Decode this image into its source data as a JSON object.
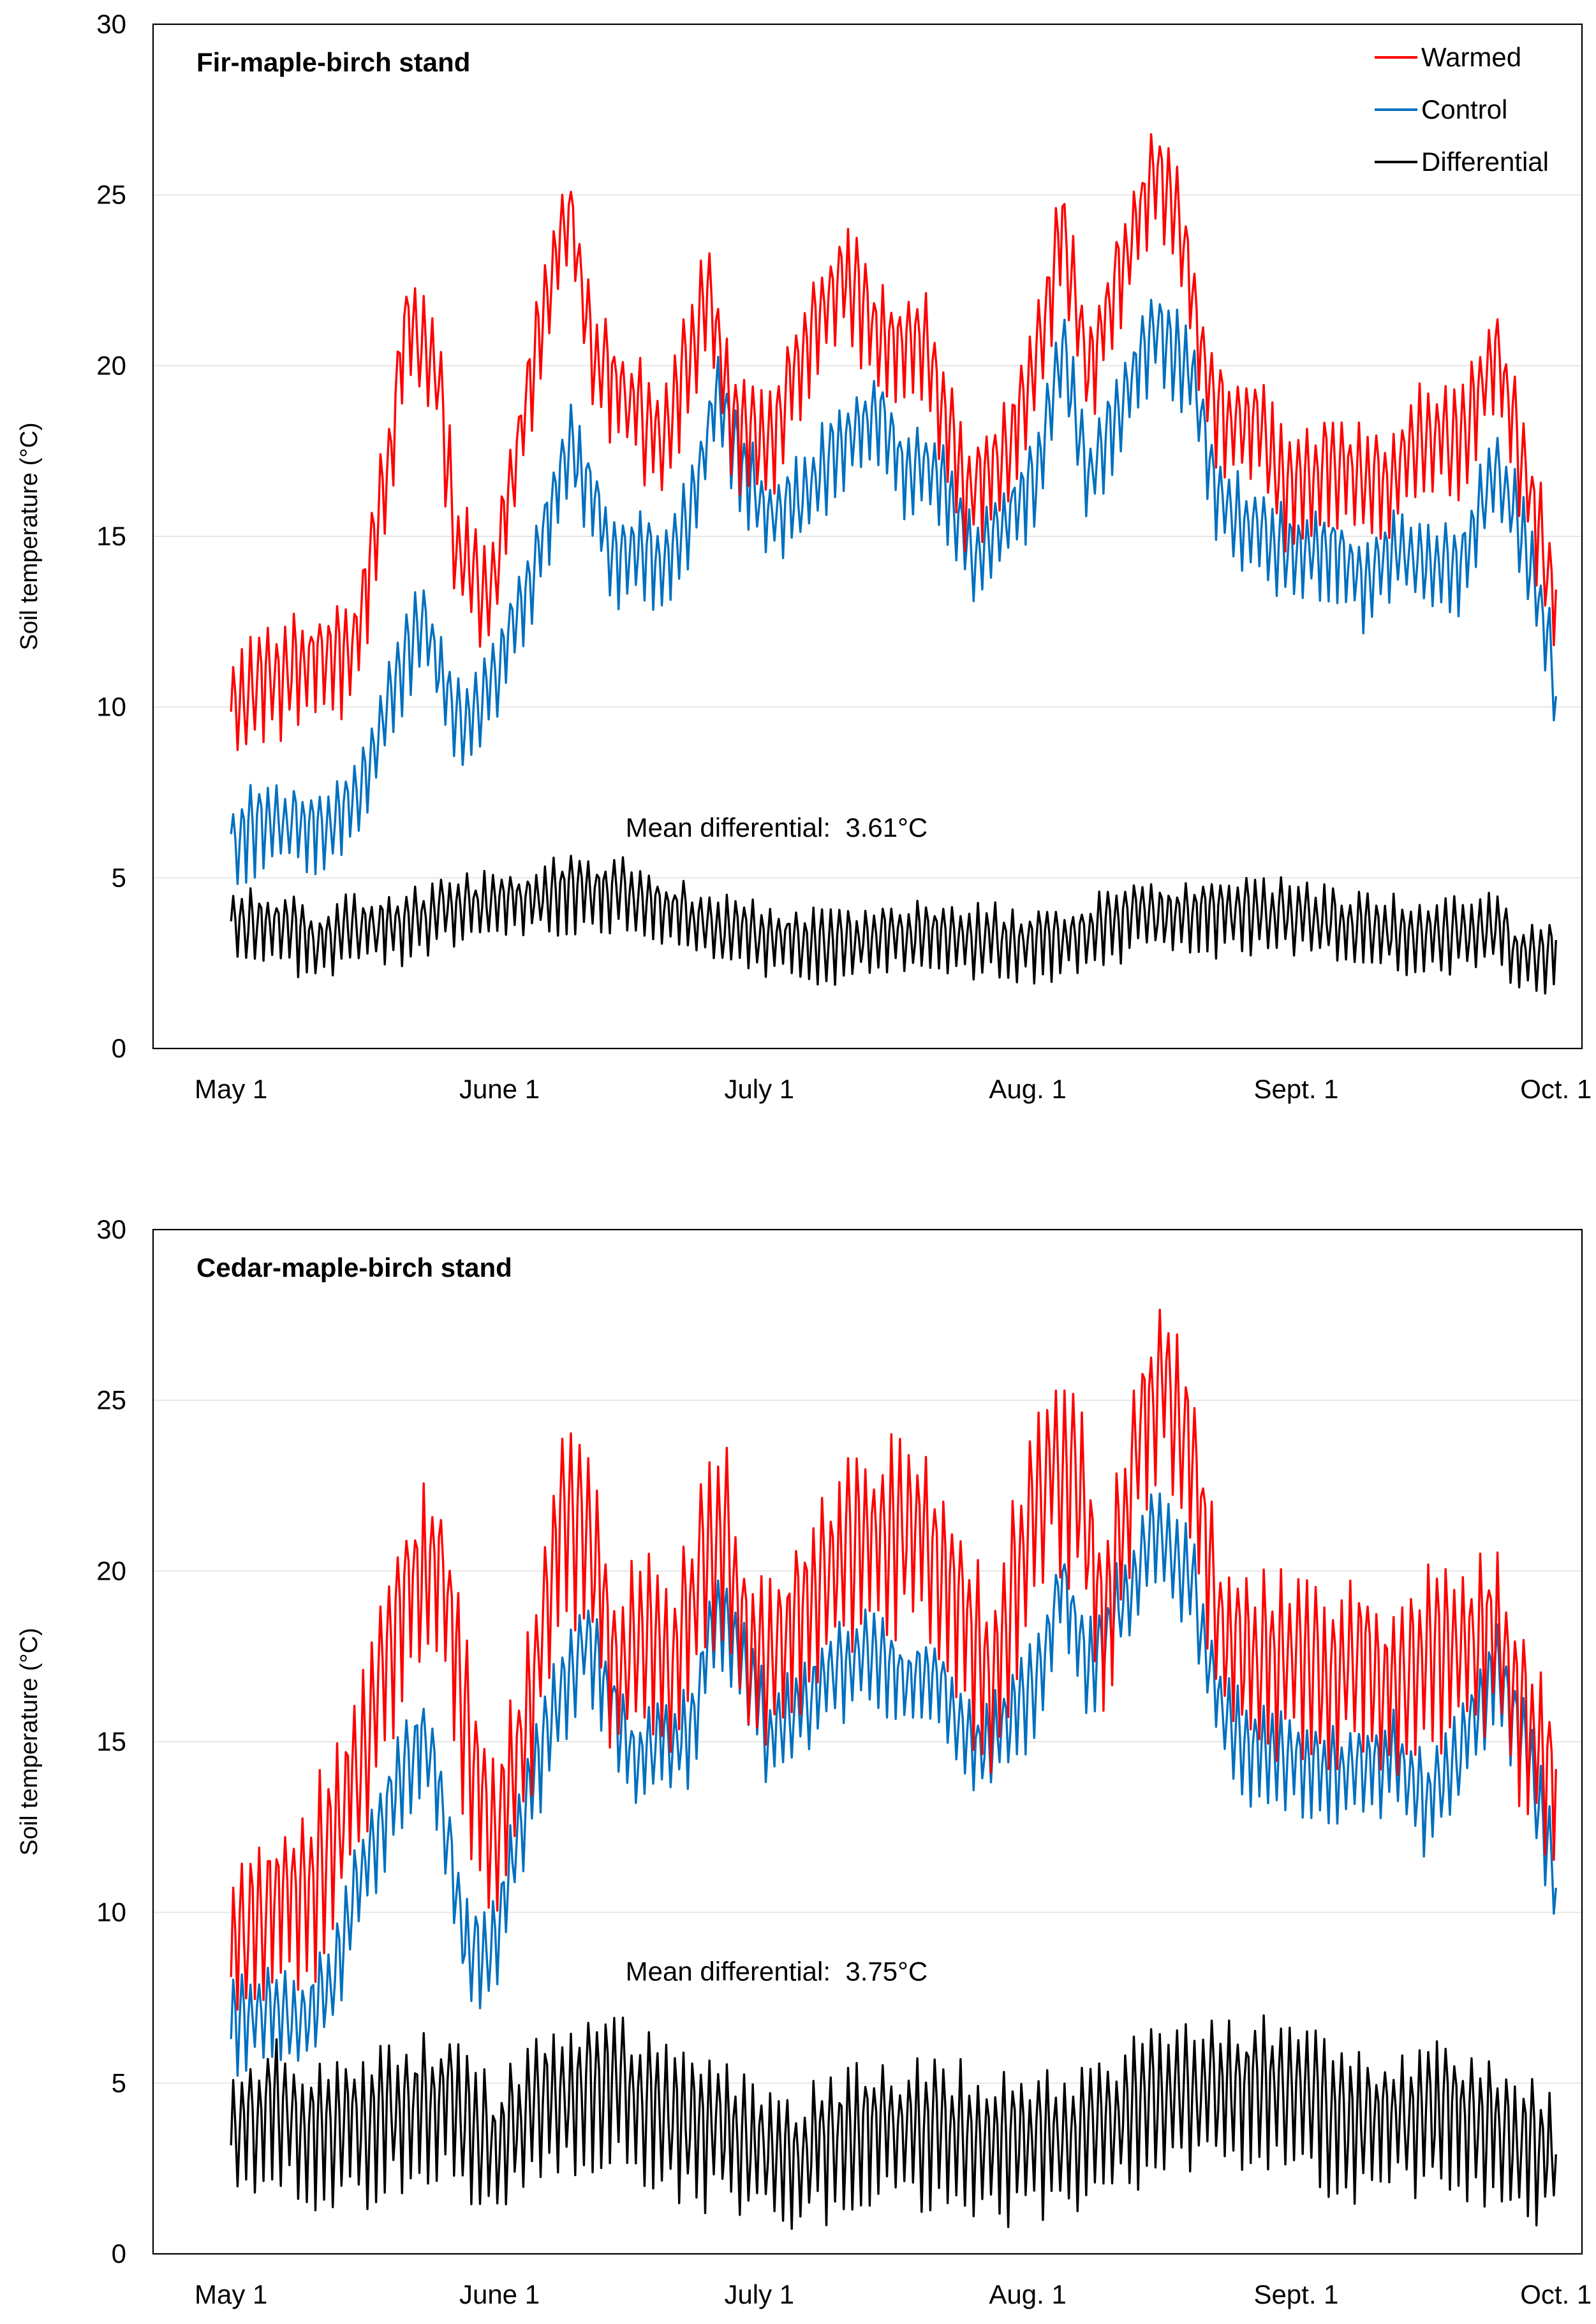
{
  "colors": {
    "warmed": "#ff0000",
    "control": "#0070c0",
    "differential": "#000000",
    "grid": "#e6e6e6",
    "frame": "#000000"
  },
  "chart_data": [
    {
      "type": "line",
      "title": "Fir-maple-birch stand",
      "ylabel": "Soil temperature (°C)",
      "xlabel": "",
      "ylim": [
        0,
        30
      ],
      "yticks": [
        "0",
        "5",
        "10",
        "15",
        "20",
        "25",
        "30"
      ],
      "xticks": [
        "May 1",
        "June 1",
        "July 1",
        "Aug. 1",
        "Sept. 1",
        "Oct. 1"
      ],
      "x_unit": "day of season (0 = May 1)",
      "xlim": [
        -9,
        156
      ],
      "grid": true,
      "legend_position": "top-right",
      "annotation": "Mean differential:  3.61°C",
      "series": [
        {
          "name": "Warmed",
          "color": "#ff0000",
          "amp": 1.4,
          "x": [
            0,
            3,
            8,
            14,
            18,
            20,
            24,
            26,
            30,
            35,
            39,
            42,
            47,
            50,
            55,
            58,
            62,
            67,
            71,
            75,
            80,
            85,
            90,
            93,
            96,
            99,
            103,
            107,
            110,
            113,
            116,
            119,
            122,
            127,
            130,
            134,
            138,
            142,
            146,
            150,
            152,
            153
          ],
          "values": [
            9.5,
            10.5,
            11,
            11.5,
            16.5,
            21,
            19.5,
            14.5,
            13,
            20,
            24.5,
            20,
            18.5,
            17.5,
            22,
            18,
            17.5,
            21,
            22.5,
            20.5,
            20.5,
            16,
            17.5,
            20,
            24,
            19.5,
            23,
            25.5,
            23.5,
            19,
            18,
            18,
            16,
            17,
            16.5,
            16.5,
            18,
            17.5,
            20.5,
            16,
            14,
            13.5
          ]
        },
        {
          "name": "Control",
          "color": "#0070c0",
          "amp": 1.1,
          "x": [
            0,
            4,
            8,
            12,
            15,
            19,
            22,
            24,
            27,
            31,
            35,
            39,
            42,
            44,
            47,
            50,
            53,
            56,
            59,
            62,
            66,
            70,
            75,
            78,
            81,
            86,
            90,
            93,
            96,
            99,
            103,
            107,
            111,
            114,
            118,
            122,
            127,
            131,
            134,
            138,
            142,
            146,
            149,
            152,
            153
          ],
          "values": [
            6,
            6.5,
            6.5,
            6.5,
            7.5,
            10.5,
            12.5,
            11,
            9,
            11,
            14,
            17.5,
            16,
            14,
            14.5,
            14,
            15.5,
            19,
            17,
            15.5,
            16,
            17.5,
            18.5,
            16.5,
            17,
            14,
            15.5,
            16.5,
            20.5,
            16.5,
            19,
            21,
            19.5,
            16,
            15,
            14.5,
            14.5,
            13.5,
            14.5,
            14,
            14,
            17,
            15,
            12,
            10.5
          ]
        },
        {
          "name": "Differential",
          "color": "#000000",
          "amp": 0.9,
          "x": [
            0,
            5,
            10,
            15,
            20,
            25,
            30,
            35,
            40,
            45,
            50,
            55,
            60,
            65,
            70,
            75,
            80,
            85,
            90,
            95,
            100,
            105,
            110,
            115,
            120,
            125,
            130,
            135,
            140,
            145,
            147,
            148,
            150,
            153
          ],
          "values": [
            3.5,
            3.5,
            3,
            3.5,
            3.5,
            4,
            4,
            4.3,
            4.5,
            4.5,
            4,
            3.5,
            3.2,
            3,
            3,
            3.2,
            3.3,
            3.2,
            3,
            3.1,
            3.4,
            3.8,
            3.8,
            3.8,
            3.9,
            3.7,
            3.5,
            3.3,
            3.2,
            3.4,
            3.5,
            2.6,
            2.6,
            2.8
          ]
        }
      ]
    },
    {
      "type": "line",
      "title": "Cedar-maple-birch stand",
      "ylabel": "Soil temperature (°C)",
      "xlabel": "",
      "ylim": [
        0,
        30
      ],
      "yticks": [
        "0",
        "5",
        "10",
        "15",
        "20",
        "25",
        "30"
      ],
      "xticks": [
        "May 1",
        "June 1",
        "July 1",
        "Aug. 1",
        "Sept. 1",
        "Oct. 1"
      ],
      "x_unit": "day of season (0 = May 1)",
      "xlim": [
        -9,
        156
      ],
      "grid": true,
      "legend_position": "none",
      "annotation": "Mean differential:  3.75°C",
      "series": [
        {
          "name": "Warmed",
          "color": "#ff0000",
          "amp": 2.3,
          "x": [
            0,
            4,
            8,
            12,
            16,
            20,
            24,
            27,
            30,
            34,
            38,
            41,
            44,
            48,
            51,
            54,
            57,
            60,
            64,
            68,
            72,
            76,
            80,
            84,
            88,
            92,
            95,
            98,
            101,
            105,
            108,
            111,
            114,
            118,
            122,
            126,
            130,
            134,
            138,
            142,
            146,
            150,
            153
          ],
          "values": [
            8.5,
            10,
            10,
            12,
            15,
            19,
            20,
            15.5,
            11.5,
            15,
            21.5,
            21,
            17,
            17.5,
            16.5,
            19.5,
            21,
            17,
            17.5,
            19.5,
            20.5,
            21,
            20.5,
            18.5,
            16.5,
            21,
            23,
            22,
            18,
            24,
            25.5,
            23,
            18,
            17,
            17.5,
            16.5,
            17.5,
            16,
            17.5,
            17.5,
            18,
            15,
            13.5
          ]
        },
        {
          "name": "Control",
          "color": "#0070c0",
          "amp": 1.2,
          "x": [
            0,
            4,
            8,
            12,
            15,
            19,
            22,
            24,
            27,
            30,
            33,
            37,
            41,
            44,
            47,
            50,
            53,
            56,
            59,
            62,
            66,
            70,
            75,
            78,
            81,
            86,
            90,
            93,
            96,
            99,
            103,
            107,
            111,
            114,
            118,
            122,
            127,
            131,
            134,
            138,
            142,
            146,
            149,
            152,
            153
          ],
          "values": [
            6.5,
            7,
            6.5,
            8,
            11,
            13.5,
            15,
            13.5,
            9,
            8.5,
            12,
            15.5,
            18,
            16,
            14,
            15,
            15,
            19,
            17.5,
            15,
            16,
            17,
            17.5,
            16.5,
            17,
            14.5,
            15.5,
            16.5,
            19.5,
            17,
            19,
            21,
            19.5,
            16,
            14.5,
            14.5,
            14,
            14,
            14.5,
            13,
            14.5,
            17,
            15,
            12,
            10.5
          ]
        },
        {
          "name": "Differential",
          "color": "#000000",
          "amp": 1.8,
          "x": [
            0,
            5,
            10,
            15,
            20,
            25,
            28,
            30,
            35,
            40,
            45,
            50,
            55,
            60,
            65,
            70,
            75,
            80,
            85,
            90,
            95,
            100,
            105,
            110,
            115,
            120,
            125,
            130,
            135,
            140,
            145,
            150,
            153
          ],
          "values": [
            3.5,
            4,
            3.5,
            3.5,
            4,
            4.2,
            3.5,
            2.8,
            4.2,
            4.5,
            4.7,
            3.8,
            3.5,
            3,
            2.6,
            3.2,
            3.4,
            3.4,
            3.3,
            3,
            3,
            3.5,
            4.2,
            4.5,
            4.5,
            4.6,
            4.2,
            3.5,
            3.8,
            3.8,
            3.6,
            3,
            2.8
          ]
        }
      ]
    }
  ]
}
